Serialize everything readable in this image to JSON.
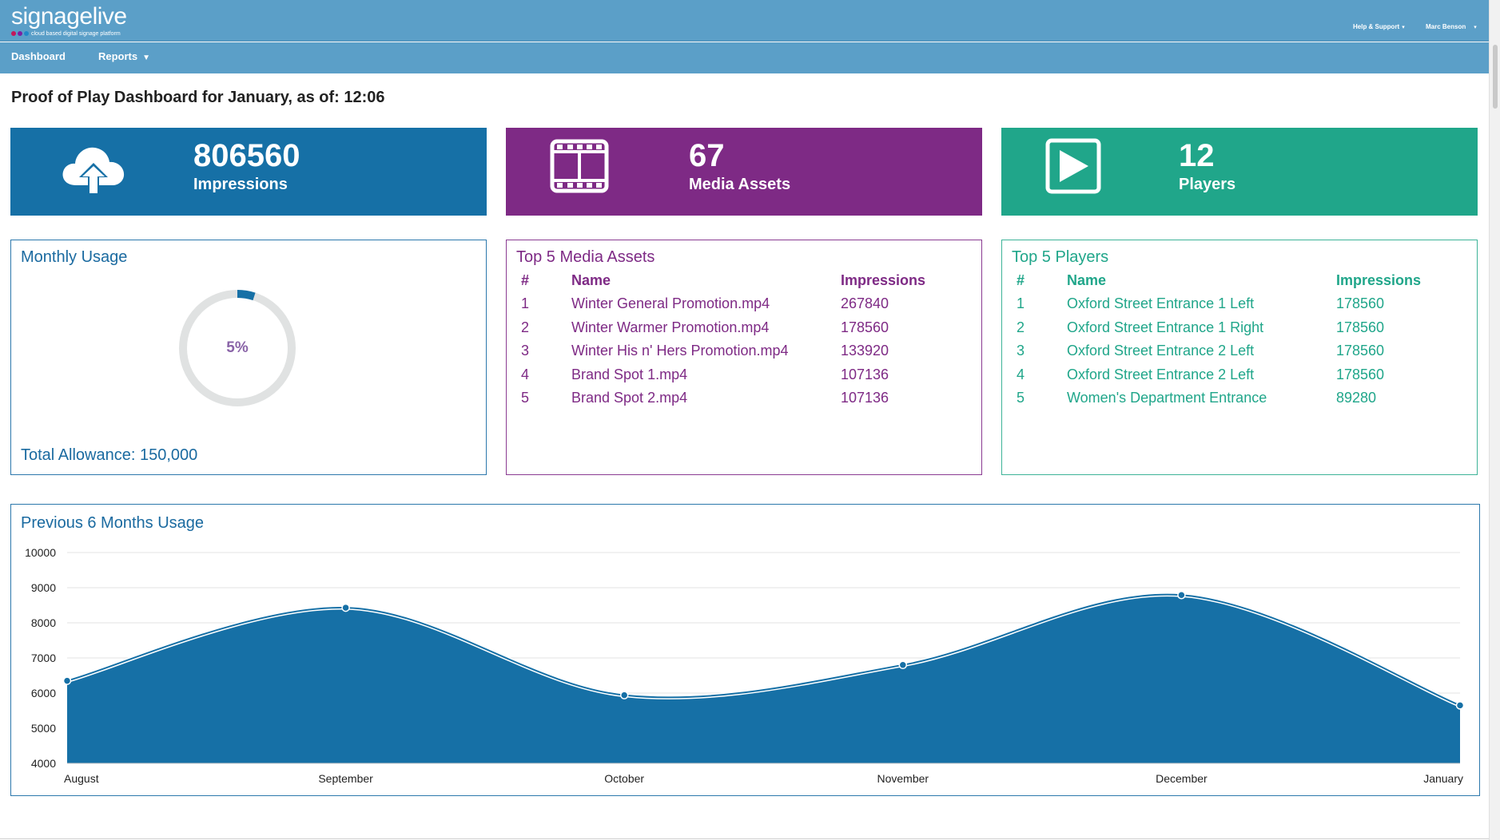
{
  "header": {
    "logo_main": "signage",
    "logo_light": "live",
    "logo_tagline": "cloud based digital signage platform",
    "help_menu": "Help & Support",
    "user_menu": "Marc Benson"
  },
  "nav": {
    "dashboard": "Dashboard",
    "reports": "Reports"
  },
  "page": {
    "title": "Proof of Play Dashboard for January, as of: 12:06"
  },
  "tiles": [
    {
      "value": "806560",
      "label": "Impressions",
      "icon": "cloud-upload-icon",
      "color": "#1670a6"
    },
    {
      "value": "67",
      "label": "Media Assets",
      "icon": "film-icon",
      "color": "#7e2a85"
    },
    {
      "value": "12",
      "label": "Players",
      "icon": "play-icon",
      "color": "#20a68a"
    }
  ],
  "monthly_usage": {
    "title": "Monthly Usage",
    "percent_label": "5%",
    "percent_value": 0.05,
    "allowance": "Total Allowance: 150,000"
  },
  "top_media": {
    "title": "Top 5 Media Assets",
    "headers": [
      "#",
      "Name",
      "Impressions"
    ],
    "rows": [
      [
        "1",
        "Winter General Promotion.mp4",
        "267840"
      ],
      [
        "2",
        "Winter Warmer Promotion.mp4",
        "178560"
      ],
      [
        "3",
        "Winter His n' Hers Promotion.mp4",
        "133920"
      ],
      [
        "4",
        "Brand Spot 1.mp4",
        "107136"
      ],
      [
        "5",
        "Brand Spot 2.mp4",
        "107136"
      ]
    ]
  },
  "top_players": {
    "title": "Top 5 Players",
    "headers": [
      "#",
      "Name",
      "Impressions"
    ],
    "rows": [
      [
        "1",
        "Oxford Street Entrance 1 Left",
        "178560"
      ],
      [
        "2",
        "Oxford Street Entrance 1 Right",
        "178560"
      ],
      [
        "3",
        "Oxford Street Entrance 2 Left",
        "178560"
      ],
      [
        "4",
        "Oxford Street Entrance 2  Left",
        "178560"
      ],
      [
        "5",
        "Women's Department Entrance",
        "89280"
      ]
    ]
  },
  "chart_data": {
    "type": "area",
    "title": "Previous 6 Months Usage",
    "categories": [
      "August",
      "September",
      "October",
      "November",
      "December",
      "January"
    ],
    "series": [
      {
        "values": [
          6350,
          8430,
          5940,
          6800,
          8790,
          5650
        ],
        "color": "#1670a6"
      }
    ],
    "ylim": [
      4000,
      10000
    ],
    "yticks": [
      4000,
      5000,
      6000,
      7000,
      8000,
      9000,
      10000
    ],
    "grid": true,
    "legend": "none"
  }
}
